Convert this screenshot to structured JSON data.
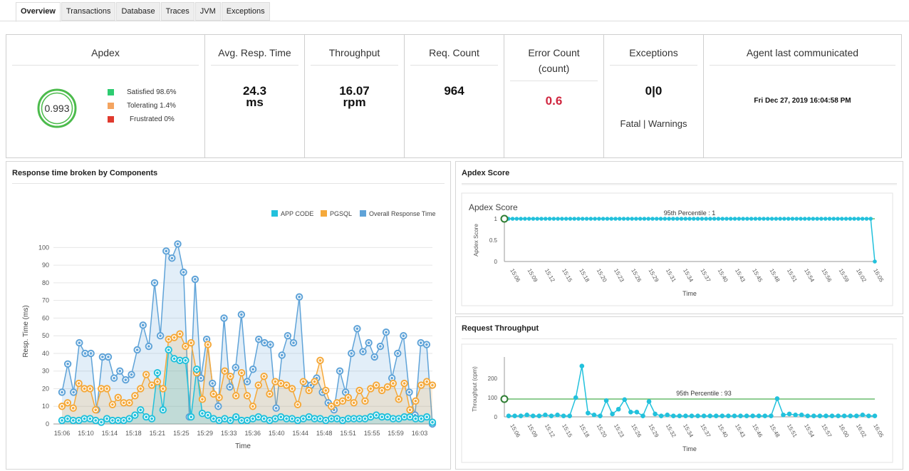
{
  "tabs": [
    {
      "label": "Overview",
      "active": true
    },
    {
      "label": "Transactions",
      "active": false
    },
    {
      "label": "Database",
      "active": false
    },
    {
      "label": "Traces",
      "active": false
    },
    {
      "label": "JVM",
      "active": false
    },
    {
      "label": "Exceptions",
      "active": false
    }
  ],
  "kpis": {
    "apdex": {
      "title": "Apdex",
      "score": "0.993",
      "legend": [
        {
          "label": "Satisfied 98.6%",
          "color": "#2ecc71"
        },
        {
          "label": "Tolerating 1.4%",
          "color": "#f4a460"
        },
        {
          "label": "Frustrated 0%",
          "color": "#e74c3c"
        }
      ]
    },
    "avg_resp": {
      "title": "Avg. Resp. Time",
      "value": "24.3",
      "unit": "ms"
    },
    "throughput": {
      "title": "Throughput",
      "value": "16.07",
      "unit": "rpm"
    },
    "req_count": {
      "title": "Req. Count",
      "value": "964"
    },
    "error_count": {
      "title": "Error Count",
      "subtitle": "(count)",
      "value": "0.6"
    },
    "exceptions": {
      "title": "Exceptions",
      "value": "0|0",
      "caption": "Fatal | Warnings"
    },
    "agent": {
      "title": "Agent last communicated",
      "value": "Fri Dec 27, 2019 16:04:58 PM"
    }
  },
  "panels": {
    "response": {
      "title": "Response time broken by Components"
    },
    "apdex": {
      "title": "Apdex Score"
    },
    "throughput": {
      "title": "Request Throughput"
    }
  },
  "chart_data": [
    {
      "type": "area",
      "title": "",
      "xlabel": "Time",
      "ylabel": "Resp. Time (ms)",
      "ylim": [
        0,
        105
      ],
      "yticks": [
        0,
        10,
        20,
        30,
        40,
        50,
        60,
        70,
        80,
        90,
        100
      ],
      "xticks": [
        "15:06",
        "15:10",
        "15:14",
        "15:18",
        "15:21",
        "15:25",
        "15:29",
        "15:33",
        "15:36",
        "15:40",
        "15:44",
        "15:48",
        "15:51",
        "15:55",
        "15:59",
        "16:03"
      ],
      "legend_position": "top-right",
      "series": [
        {
          "name": "APP CODE",
          "color": "#22c1dc",
          "values": [
            2,
            3,
            2,
            2,
            3,
            3,
            2,
            1,
            3,
            2,
            2,
            2,
            3,
            5,
            8,
            4,
            3,
            29,
            8,
            42,
            37,
            36,
            36,
            4,
            31,
            6,
            5,
            3,
            2,
            3,
            2,
            4,
            2,
            2,
            3,
            4,
            3,
            2,
            3,
            4,
            3,
            3,
            2,
            3,
            4,
            3,
            3,
            2,
            3,
            3,
            2,
            3,
            3,
            3,
            3,
            4,
            5,
            4,
            4,
            3,
            3,
            4,
            4,
            3,
            3,
            4,
            1
          ]
        },
        {
          "name": "PGSQL",
          "color": "#f5a93b",
          "values": [
            10,
            12,
            9,
            23,
            20,
            20,
            8,
            20,
            20,
            11,
            15,
            12,
            12,
            16,
            20,
            28,
            22,
            24,
            20,
            48,
            49,
            51,
            44,
            46,
            29,
            14,
            45,
            17,
            15,
            30,
            27,
            16,
            29,
            16,
            10,
            22,
            27,
            17,
            24,
            23,
            22,
            20,
            11,
            24,
            19,
            24,
            36,
            19,
            10,
            12,
            13,
            15,
            12,
            19,
            13,
            20,
            22,
            19,
            21,
            23,
            14,
            23,
            8,
            13,
            22,
            24,
            22
          ]
        },
        {
          "name": "Overall Response Time",
          "color": "#5fa3d8",
          "values": [
            18,
            34,
            18,
            46,
            40,
            40,
            8,
            38,
            38,
            26,
            30,
            25,
            28,
            42,
            56,
            44,
            80,
            50,
            98,
            94,
            102,
            86,
            4,
            82,
            26,
            48,
            23,
            10,
            60,
            21,
            32,
            62,
            24,
            31,
            48,
            46,
            45,
            9,
            39,
            50,
            46,
            72,
            23,
            22,
            26,
            18,
            12,
            8,
            30,
            18,
            40,
            54,
            41,
            46,
            38,
            44,
            52,
            26,
            40,
            50,
            18,
            5,
            46,
            45,
            0
          ]
        }
      ]
    },
    {
      "type": "line",
      "title": "Apdex Score",
      "xlabel": "Time",
      "ylabel": "Apdex Score",
      "ylim": [
        0,
        1
      ],
      "yticks": [
        0,
        0.5,
        1
      ],
      "xticks": [
        "15:06",
        "15:09",
        "15:12",
        "15:15",
        "15:18",
        "15:20",
        "15:23",
        "15:26",
        "15:29",
        "15:31",
        "15:34",
        "15:37",
        "15:40",
        "15:43",
        "15:45",
        "15:48",
        "15:51",
        "15:54",
        "15:56",
        "15:59",
        "16:02",
        "16:05"
      ],
      "reference_line": {
        "label": "95th Percentile : 1",
        "value": 1,
        "color": "#4caf50"
      },
      "series": [
        {
          "name": "Apdex Score",
          "color": "#22c1dc",
          "values": [
            1,
            1,
            1,
            1,
            1,
            1,
            1,
            1,
            1,
            1,
            1,
            1,
            1,
            1,
            1,
            1,
            1,
            1,
            1,
            1,
            1,
            1,
            1,
            1,
            1,
            1,
            1,
            1,
            1,
            1,
            1,
            1,
            1,
            1,
            1,
            1,
            1,
            1,
            1,
            1,
            1,
            1,
            1,
            1,
            1,
            1,
            1,
            1,
            1,
            1,
            1,
            1,
            1,
            1,
            1,
            1,
            1,
            1,
            1,
            1,
            1,
            1,
            1,
            1,
            1,
            1,
            1,
            1,
            1,
            1,
            1,
            1,
            1,
            1,
            1,
            1,
            1,
            1,
            1,
            1,
            1,
            1,
            1,
            1,
            1,
            1,
            1,
            1,
            1,
            1,
            0
          ]
        }
      ]
    },
    {
      "type": "line",
      "title": "",
      "xlabel": "Time",
      "ylabel": "Throughput (cpm)",
      "ylim": [
        0,
        290
      ],
      "yticks": [
        0,
        100,
        200
      ],
      "xticks": [
        "15:06",
        "15:09",
        "15:12",
        "15:15",
        "15:18",
        "15:20",
        "15:23",
        "15:26",
        "15:29",
        "15:32",
        "15:34",
        "15:37",
        "15:40",
        "15:43",
        "15:46",
        "15:48",
        "15:51",
        "15:54",
        "15:57",
        "16:00",
        "16:02",
        "16:05"
      ],
      "reference_line": {
        "label": "95th Percentile : 93",
        "value": 93,
        "color": "#4caf50"
      },
      "series": [
        {
          "name": "Throughput",
          "color": "#22c1dc",
          "values": [
            5,
            5,
            5,
            10,
            5,
            5,
            10,
            5,
            10,
            5,
            5,
            100,
            265,
            20,
            10,
            5,
            85,
            15,
            40,
            90,
            25,
            25,
            5,
            80,
            15,
            5,
            10,
            5,
            5,
            5,
            5,
            5,
            5,
            5,
            5,
            5,
            5,
            5,
            5,
            5,
            5,
            5,
            5,
            5,
            95,
            10,
            15,
            10,
            10,
            5,
            5,
            5,
            5,
            5,
            5,
            5,
            5,
            5,
            10,
            5,
            5
          ]
        }
      ]
    }
  ]
}
